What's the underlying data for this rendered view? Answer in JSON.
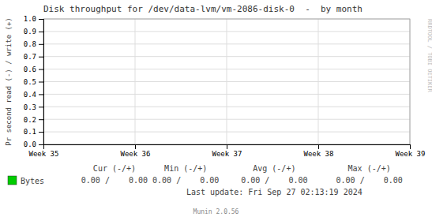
{
  "chart_data": {
    "type": "line",
    "title": "Disk throughput for /dev/data-lvm/vm-2086-disk-0  -  by month",
    "y_label": "Pr second read (-) / write (+)",
    "categories": [
      "Week 35",
      "Week 36",
      "Week 37",
      "Week 38",
      "Week 39"
    ],
    "series": [
      {
        "name": "Bytes",
        "color": "#00cc00",
        "values": [
          null,
          null,
          null,
          null,
          null
        ]
      }
    ],
    "ylim": [
      0,
      1
    ],
    "yticks": [
      {
        "value": 0,
        "label": "0.0"
      },
      0.1,
      0.2,
      0.3,
      0.4,
      0.5,
      0.6,
      0.7,
      0.8,
      0.9,
      {
        "value": 1,
        "label": "1.0"
      }
    ],
    "grid": true,
    "annotations": [
      "Cur (-/+)",
      "Min (-/+)",
      "Avg (-/+)",
      "Max (-/+)",
      "0.00 /    0.00",
      "0.00 /    0.00",
      "0.00 /    0.00",
      "0.00 /    0.00",
      "Last update: Fri Sep 27 02:13:19 2024",
      "Munin 2.0.56",
      "RRDTOOL / TOBI OETIKER"
    ]
  }
}
